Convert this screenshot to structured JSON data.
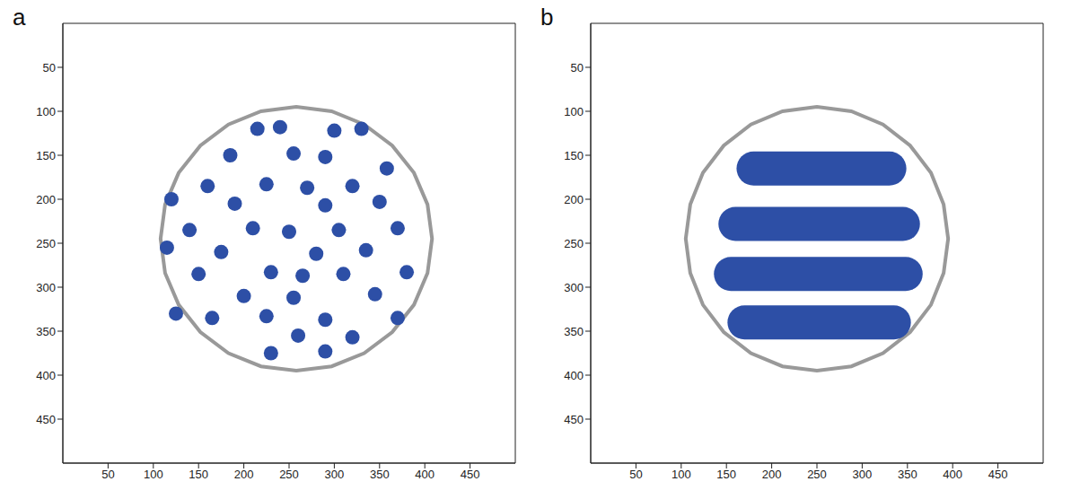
{
  "chart_data": [
    {
      "type": "scatter",
      "title": "a",
      "xlim": [
        0,
        500
      ],
      "ylim": [
        500,
        0
      ],
      "xticks": [
        50,
        100,
        150,
        200,
        250,
        300,
        350,
        400,
        450
      ],
      "yticks": [
        50,
        100,
        150,
        200,
        250,
        300,
        350,
        400,
        450
      ],
      "series": [
        {
          "type": "line",
          "line_style": "solid",
          "color": "#999999",
          "x": [
            408,
            403,
            388,
            364,
            333,
            297,
            258,
            219,
            183,
            152,
            128,
            113,
            108,
            113,
            128,
            152,
            183,
            219,
            258,
            297,
            333,
            364,
            388,
            403,
            408
          ],
          "y": [
            245,
            284,
            320,
            351,
            375,
            390,
            395,
            390,
            375,
            351,
            320,
            284,
            245,
            206,
            170,
            139,
            115,
            100,
            95,
            100,
            115,
            139,
            170,
            206,
            245
          ]
        },
        {
          "type": "scatter",
          "marker": "circle",
          "color": "#2d4fa6",
          "x": [
            215,
            240,
            300,
            330,
            185,
            255,
            290,
            358,
            160,
            225,
            270,
            320,
            190,
            290,
            350,
            140,
            210,
            250,
            305,
            370,
            175,
            280,
            335,
            150,
            230,
            265,
            310,
            380,
            200,
            255,
            345,
            165,
            225,
            290,
            370,
            260,
            320,
            230,
            290,
            120,
            115,
            125
          ],
          "y": [
            120,
            118,
            122,
            120,
            150,
            148,
            152,
            165,
            185,
            183,
            187,
            185,
            205,
            207,
            203,
            235,
            233,
            237,
            235,
            233,
            260,
            262,
            258,
            285,
            283,
            287,
            285,
            283,
            310,
            312,
            308,
            335,
            333,
            337,
            335,
            355,
            357,
            375,
            373,
            200,
            255,
            330
          ]
        }
      ]
    },
    {
      "type": "scatter",
      "title": "b",
      "xlim": [
        0,
        500
      ],
      "ylim": [
        500,
        0
      ],
      "xticks": [
        50,
        100,
        150,
        200,
        250,
        300,
        350,
        400,
        450
      ],
      "yticks": [
        50,
        100,
        150,
        200,
        250,
        300,
        350,
        400,
        450
      ],
      "series": [
        {
          "type": "line",
          "line_style": "solid",
          "color": "#999999",
          "x": [
            395,
            390,
            376,
            353,
            323,
            288,
            250,
            212,
            177,
            147,
            124,
            110,
            105,
            110,
            124,
            147,
            177,
            212,
            250,
            288,
            323,
            353,
            376,
            390,
            395
          ],
          "y": [
            245,
            284,
            320,
            351,
            375,
            390,
            395,
            390,
            375,
            351,
            320,
            284,
            245,
            206,
            170,
            139,
            115,
            100,
            95,
            100,
            115,
            139,
            170,
            206,
            245
          ]
        },
        {
          "type": "line",
          "line_style": "thick",
          "color": "#2d4fa6",
          "x": [
            180,
            330
          ],
          "y": [
            165,
            165
          ]
        },
        {
          "type": "line",
          "line_style": "thick",
          "color": "#2d4fa6",
          "x": [
            160,
            345
          ],
          "y": [
            228,
            228
          ]
        },
        {
          "type": "line",
          "line_style": "thick",
          "color": "#2d4fa6",
          "x": [
            155,
            348
          ],
          "y": [
            285,
            285
          ]
        },
        {
          "type": "line",
          "line_style": "thick",
          "color": "#2d4fa6",
          "x": [
            170,
            335
          ],
          "y": [
            340,
            340
          ]
        }
      ]
    }
  ]
}
